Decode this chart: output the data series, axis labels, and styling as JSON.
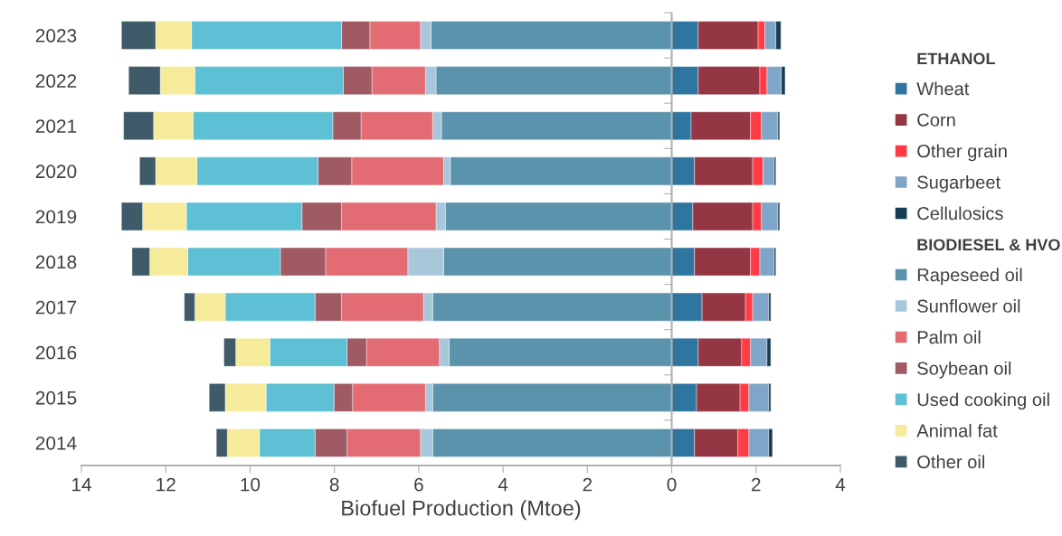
{
  "chart_data": {
    "type": "bar",
    "orientation": "horizontal",
    "stacked": true,
    "xlabel": "Biofuel Production (Mtoe)",
    "categories": [
      "2023",
      "2022",
      "2021",
      "2020",
      "2019",
      "2018",
      "2017",
      "2016",
      "2015",
      "2014"
    ],
    "series": [
      {
        "name": "Wheat",
        "color": "#2e75a0",
        "values": [
          0.63,
          0.63,
          0.46,
          0.54,
          0.5,
          0.54,
          0.72,
          0.63,
          0.59,
          0.54
        ]
      },
      {
        "name": "Corn",
        "color": "#943644",
        "values": [
          1.42,
          1.46,
          1.41,
          1.38,
          1.42,
          1.33,
          1.03,
          1.03,
          1.03,
          1.03
        ]
      },
      {
        "name": "Other grain",
        "color": "#ff3b45",
        "values": [
          0.16,
          0.17,
          0.26,
          0.25,
          0.21,
          0.22,
          0.17,
          0.21,
          0.21,
          0.26
        ]
      },
      {
        "name": "Sugarbeet",
        "color": "#7fa6c9",
        "values": [
          0.26,
          0.34,
          0.39,
          0.26,
          0.39,
          0.34,
          0.38,
          0.39,
          0.47,
          0.47
        ]
      },
      {
        "name": "Cellulosics",
        "color": "#163c52",
        "values": [
          0.12,
          0.09,
          0.04,
          0.04,
          0.04,
          0.04,
          0.05,
          0.09,
          0.05,
          0.09
        ]
      },
      {
        "name": "Rapeseed oil",
        "color": "#5b93ad",
        "values": [
          -5.71,
          -5.59,
          -5.46,
          -5.25,
          -5.37,
          -5.41,
          -5.67,
          -5.28,
          -5.67,
          -5.67
        ]
      },
      {
        "name": "Sunflower oil",
        "color": "#a9c7da",
        "values": [
          -0.25,
          -0.25,
          -0.21,
          -0.16,
          -0.22,
          -0.85,
          -0.22,
          -0.23,
          -0.17,
          -0.29
        ]
      },
      {
        "name": "Palm oil",
        "color": "#e36c74",
        "values": [
          -1.2,
          -1.27,
          -1.7,
          -2.18,
          -2.24,
          -1.95,
          -1.94,
          -1.73,
          -1.73,
          -1.74
        ]
      },
      {
        "name": "Soybean oil",
        "color": "#a05a64",
        "values": [
          -0.67,
          -0.68,
          -0.67,
          -0.8,
          -0.94,
          -1.07,
          -0.63,
          -0.46,
          -0.44,
          -0.76
        ]
      },
      {
        "name": "Used cooking oil",
        "color": "#5ec0d4",
        "values": [
          -3.56,
          -3.52,
          -3.31,
          -2.87,
          -2.74,
          -2.2,
          -2.13,
          -1.83,
          -1.61,
          -1.32
        ]
      },
      {
        "name": "Animal fat",
        "color": "#f5eb9a",
        "values": [
          -0.85,
          -0.82,
          -0.94,
          -0.98,
          -1.04,
          -0.9,
          -0.72,
          -0.81,
          -0.97,
          -0.76
        ]
      },
      {
        "name": "Other oil",
        "color": "#3f5a69",
        "values": [
          -0.81,
          -0.75,
          -0.71,
          -0.38,
          -0.5,
          -0.42,
          -0.25,
          -0.28,
          -0.38,
          -0.26
        ]
      }
    ],
    "annotations": [
      "ETHANOL",
      "BIODIESEL & HVO"
    ],
    "xlim": [
      -14,
      4
    ],
    "xticks": [
      {
        "value": -14,
        "label": "14"
      },
      {
        "value": -12,
        "label": "12"
      },
      {
        "value": -10,
        "label": "10"
      },
      {
        "value": -8,
        "label": "8"
      },
      {
        "value": -6,
        "label": "6"
      },
      {
        "value": -4,
        "label": "4"
      },
      {
        "value": -2,
        "label": "2"
      },
      0,
      2,
      4
    ],
    "ref_lines": [
      {
        "axis": "x",
        "value": 0,
        "color": "#b0b0b0"
      }
    ],
    "legend": "right"
  }
}
